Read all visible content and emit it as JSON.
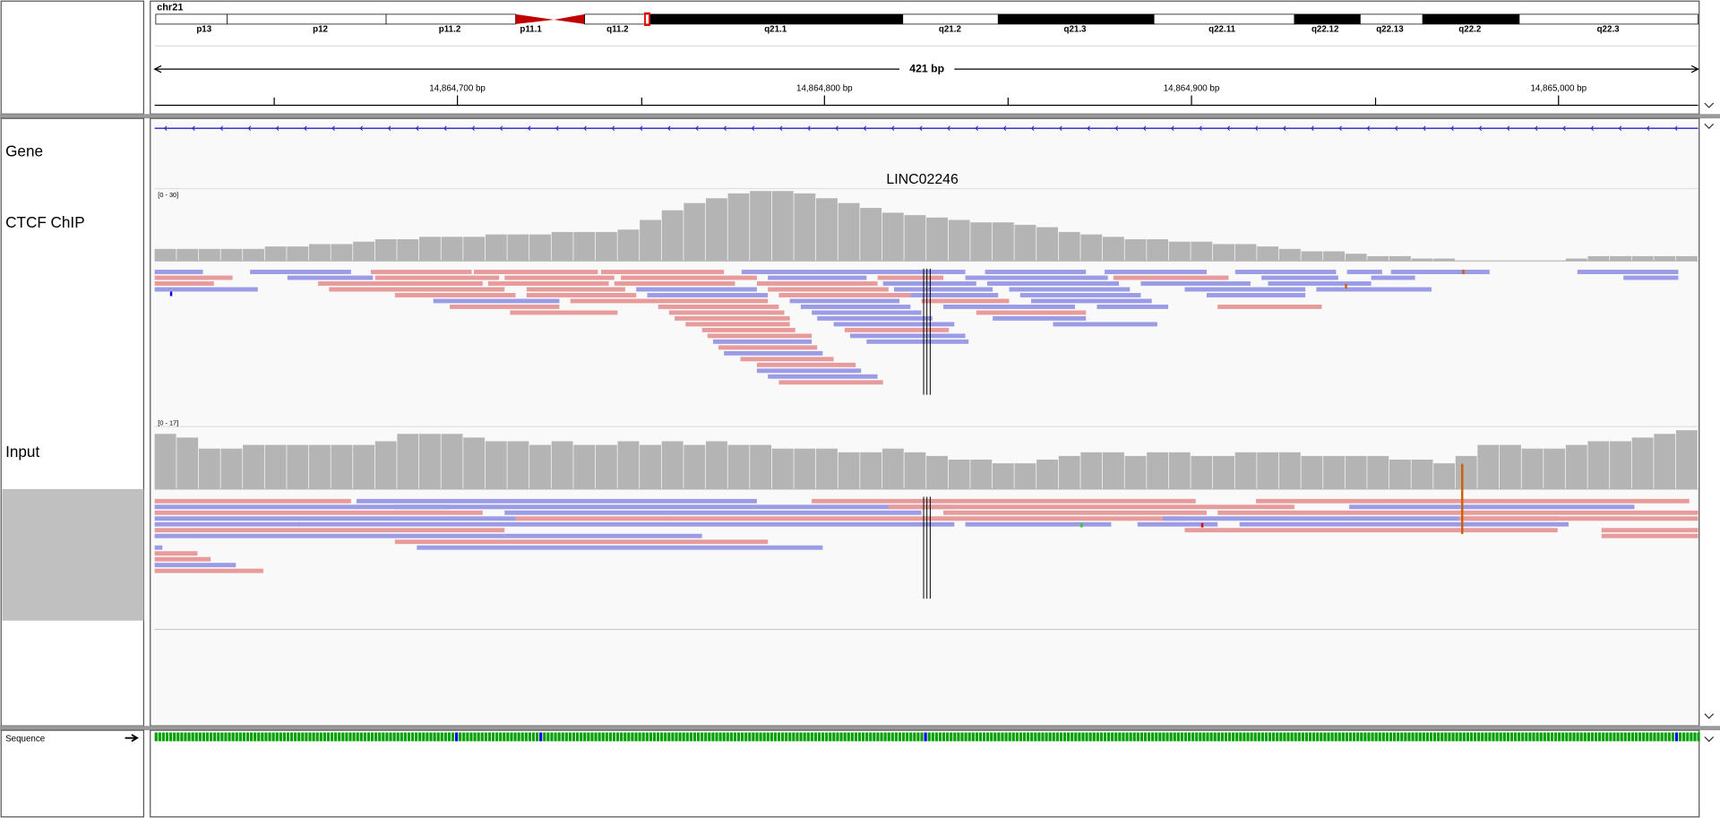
{
  "header": {
    "chromosome": "chr21",
    "bands": [
      "p13",
      "p12",
      "p11.2",
      "p11.1",
      "q11.2",
      "q21.1",
      "q21.2",
      "q21.3",
      "q22.11",
      "q22.12",
      "q22.13",
      "q22.2",
      "q22.3"
    ],
    "span": "421 bp",
    "ruler_ticks": [
      "14,864,700 bp",
      "14,864,800 bp",
      "14,864,900 bp",
      "14,865,000 bp"
    ]
  },
  "gene": {
    "name": "LINC02246"
  },
  "tracks": [
    {
      "name": "Gene"
    },
    {
      "name": "CTCF ChIP",
      "range": "[0 - 30]",
      "coverage": {
        "ylim": [
          0,
          30
        ],
        "values": [
          5,
          5,
          5,
          5,
          5,
          6,
          6,
          7,
          7,
          8,
          9,
          9,
          10,
          10,
          10,
          11,
          11,
          11,
          12,
          12,
          12,
          13,
          17,
          21,
          24,
          26,
          28,
          29,
          29,
          28,
          26,
          24,
          22,
          20,
          19,
          18,
          17,
          16,
          16,
          15,
          14,
          12,
          11,
          10,
          9,
          9,
          8,
          8,
          7,
          7,
          6,
          5,
          4,
          4,
          3,
          2,
          2,
          1,
          1,
          0,
          0,
          0,
          0,
          0,
          1,
          2,
          2,
          2,
          2,
          2
        ]
      }
    },
    {
      "name": "Input",
      "range": "[0 - 17]",
      "coverage": {
        "ylim": [
          0,
          17
        ],
        "values": [
          15,
          14,
          11,
          11,
          12,
          12,
          12,
          12,
          12,
          12,
          13,
          15,
          15,
          15,
          14,
          13,
          13,
          12,
          13,
          12,
          12,
          13,
          12,
          13,
          12,
          13,
          12,
          12,
          11,
          11,
          11,
          10,
          10,
          11,
          10,
          9,
          8,
          8,
          7,
          7,
          8,
          9,
          10,
          10,
          9,
          10,
          10,
          9,
          9,
          10,
          10,
          10,
          9,
          9,
          9,
          9,
          8,
          8,
          7,
          9,
          12,
          12,
          11,
          11,
          12,
          13,
          13,
          14,
          15,
          16
        ]
      }
    }
  ],
  "sequence": {
    "label": "Sequence"
  }
}
